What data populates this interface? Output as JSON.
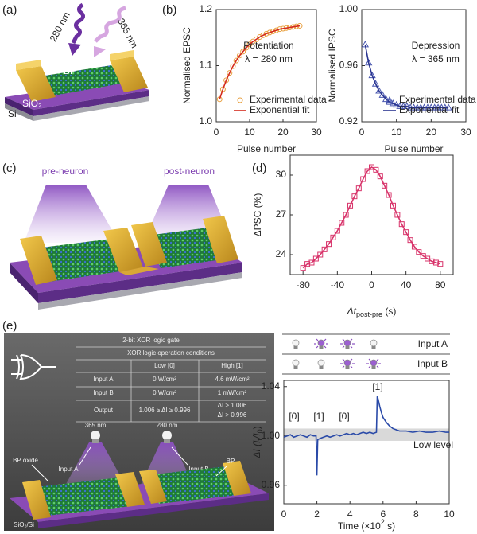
{
  "panel_labels": [
    "(a)",
    "(b)",
    "(c)",
    "(d)",
    "(e)"
  ],
  "schematic_a": {
    "labels": [
      "280 nm",
      "365 nm",
      "BP",
      "SiO₂",
      "Si"
    ]
  },
  "schematic_c": {
    "labels": [
      "pre-neuron",
      "post-neuron"
    ]
  },
  "schematic_e": {
    "title": "2-bit XOR logic gate",
    "table": {
      "caption": "XOR logic operation conditions",
      "header": [
        "Low [0]",
        "High [1]"
      ],
      "rows": [
        [
          "Input A",
          "0 W/cm²",
          "4.6 mW/cm²"
        ],
        [
          "Input B",
          "0 W/cm²",
          "1 mW/cm²"
        ],
        [
          "Output",
          "1.006 ≥ ΔI ≥ 0.996",
          [
            "ΔI > 1.006",
            "ΔI > 0.996"
          ]
        ]
      ]
    },
    "labels": [
      "365 nm",
      "280 nm",
      "Input A",
      "Input B",
      "BP oxide",
      "BP",
      "SiO₂/Si"
    ]
  },
  "light_inputs": {
    "rows": [
      "Input A",
      "Input B"
    ]
  },
  "chart_data": [
    {
      "type": "line",
      "xlabel": "Pulse number",
      "ylabel": "Normalised EPSC",
      "annotations": [
        "Potentiation",
        "λ = 280 nm"
      ],
      "x": [
        1,
        2,
        3,
        4,
        5,
        6,
        7,
        8,
        9,
        10,
        11,
        12,
        13,
        14,
        15,
        16,
        17,
        18,
        19,
        20,
        21,
        22,
        23,
        24,
        25
      ],
      "xlim": [
        0,
        30
      ],
      "xticks": [
        0,
        10,
        20,
        30
      ],
      "ylim": [
        1.0,
        1.2
      ],
      "yticks": [
        {
          "value": 1.0,
          "label": "1.0"
        },
        1.1,
        1.2
      ],
      "legend": "lower right",
      "series": [
        {
          "name": "Experimental data",
          "color": "#e8a040",
          "marker": "circle",
          "values": [
            1.04,
            1.058,
            1.074,
            1.087,
            1.099,
            1.109,
            1.118,
            1.125,
            1.132,
            1.138,
            1.143,
            1.147,
            1.151,
            1.154,
            1.157,
            1.159,
            1.161,
            1.163,
            1.165,
            1.166,
            1.167,
            1.168,
            1.169,
            1.17,
            1.171
          ]
        },
        {
          "name": "Exponential fit",
          "color": "#d42a1c",
          "line": true,
          "values": [
            1.04,
            1.058,
            1.074,
            1.087,
            1.099,
            1.109,
            1.118,
            1.125,
            1.132,
            1.138,
            1.143,
            1.147,
            1.151,
            1.154,
            1.157,
            1.159,
            1.161,
            1.163,
            1.165,
            1.166,
            1.167,
            1.168,
            1.169,
            1.17,
            1.171
          ]
        }
      ]
    },
    {
      "type": "line",
      "xlabel": "Pulse number",
      "ylabel": "Normalised IPSC",
      "annotations": [
        "Depression",
        "λ = 365 nm"
      ],
      "x": [
        1,
        2,
        3,
        4,
        5,
        6,
        7,
        8,
        9,
        10,
        11,
        12,
        13,
        14,
        15,
        16,
        17,
        18,
        19,
        20,
        21,
        22,
        23,
        24,
        25
      ],
      "xlim": [
        0,
        30
      ],
      "xticks": [
        0,
        10,
        20,
        30
      ],
      "ylim": [
        0.92,
        1.0
      ],
      "yticks": [
        0.92,
        0.96,
        {
          "value": 1.0,
          "label": "1.00"
        }
      ],
      "legend": "lower right",
      "series": [
        {
          "name": "Experimental data",
          "color": "#4a58b0",
          "marker": "triangle",
          "values": [
            0.975,
            0.962,
            0.953,
            0.947,
            0.942,
            0.939,
            0.936,
            0.934,
            0.933,
            0.932,
            0.931,
            0.931,
            0.931,
            0.93,
            0.93,
            0.93,
            0.93,
            0.93,
            0.93,
            0.93,
            0.93,
            0.93,
            0.93,
            0.93,
            0.93
          ]
        },
        {
          "name": "Exponential fit",
          "color": "#2a3590",
          "line": true,
          "values": [
            0.975,
            0.962,
            0.953,
            0.947,
            0.942,
            0.939,
            0.936,
            0.934,
            0.933,
            0.932,
            0.931,
            0.931,
            0.931,
            0.93,
            0.93,
            0.93,
            0.93,
            0.93,
            0.93,
            0.93,
            0.93,
            0.93,
            0.93,
            0.93,
            0.93
          ]
        }
      ]
    },
    {
      "type": "line",
      "xlabel": [
        "Δt",
        "post-pre",
        " (s)"
      ],
      "xlabel_style": [
        "italic",
        "sub",
        "normal"
      ],
      "ylabel": "ΔPSC (%)",
      "x": [
        -80,
        -75,
        -70,
        -65,
        -60,
        -55,
        -50,
        -45,
        -40,
        -35,
        -30,
        -25,
        -20,
        -15,
        -10,
        -5,
        0,
        5,
        10,
        15,
        20,
        25,
        30,
        35,
        40,
        45,
        50,
        55,
        60,
        65,
        70,
        75,
        80
      ],
      "xlim": [
        -95,
        95
      ],
      "xticks": [
        -80,
        -40,
        0,
        40,
        80
      ],
      "ylim": [
        22.5,
        31.5
      ],
      "yticks": [
        24,
        27,
        30
      ],
      "series": [
        {
          "color": "#d8336a",
          "marker": "square",
          "line": true,
          "values": [
            23.0,
            23.3,
            23.4,
            23.7,
            24.0,
            24.4,
            24.8,
            25.3,
            25.8,
            26.4,
            27.0,
            27.7,
            28.4,
            29.0,
            29.7,
            30.3,
            30.6,
            30.4,
            29.9,
            29.2,
            28.5,
            27.7,
            27.0,
            26.3,
            25.7,
            25.1,
            24.6,
            24.2,
            23.9,
            23.7,
            23.5,
            23.4,
            23.3
          ]
        }
      ]
    },
    {
      "type": "line",
      "xlabel": [
        "Time (×10",
        "2",
        " s)"
      ],
      "xlabel_style": [
        "normal",
        "sup",
        "normal"
      ],
      "ylabel": [
        "ΔI (I",
        "t",
        "/I",
        "0",
        ")"
      ],
      "ylabel_style": [
        "italic",
        "sub",
        "italic",
        "sub",
        "normal"
      ],
      "annotations": [
        "[0]",
        "[1]",
        "[0]",
        "[1]",
        "Low level"
      ],
      "band": [
        0.996,
        1.006
      ],
      "band_color": "#d9d9d9",
      "x": [
        0,
        0.2,
        0.4,
        0.6,
        0.8,
        1.0,
        1.2,
        1.4,
        1.6,
        1.8,
        1.95,
        2.0,
        2.05,
        2.2,
        2.4,
        2.6,
        2.8,
        3.0,
        3.2,
        3.4,
        3.6,
        3.8,
        4.0,
        4.2,
        4.4,
        4.6,
        4.8,
        5.0,
        5.2,
        5.4,
        5.6,
        5.65,
        5.7,
        5.8,
        5.9,
        6.0,
        6.2,
        6.4,
        6.6,
        6.8,
        7.0,
        7.4,
        7.8,
        8.2,
        8.6,
        9.0,
        9.4,
        9.8,
        10.0
      ],
      "xlim": [
        0,
        10
      ],
      "xticks": [
        0,
        2,
        4,
        6,
        8,
        10
      ],
      "ylim": [
        0.945,
        1.045
      ],
      "yticks": [
        0.96,
        {
          "value": 1.0,
          "label": "1.00"
        },
        1.04
      ],
      "series": [
        {
          "color": "#2a4aa8",
          "line": true,
          "values": [
            0.999,
            1.0,
            1.001,
            0.999,
            1.0,
            1.001,
            1.0,
            0.999,
            1.001,
            1.0,
            1.0,
            0.968,
            0.997,
            0.998,
            0.999,
            1.0,
            0.999,
            1.0,
            1.001,
            1.0,
            1.001,
            1.002,
            1.001,
            1.002,
            1.001,
            1.002,
            1.003,
            1.002,
            1.003,
            1.002,
            1.003,
            1.032,
            1.03,
            1.024,
            1.019,
            1.015,
            1.011,
            1.008,
            1.006,
            1.005,
            1.004,
            1.004,
            1.003,
            1.004,
            1.003,
            1.003,
            1.004,
            1.003,
            1.003
          ]
        }
      ]
    }
  ]
}
